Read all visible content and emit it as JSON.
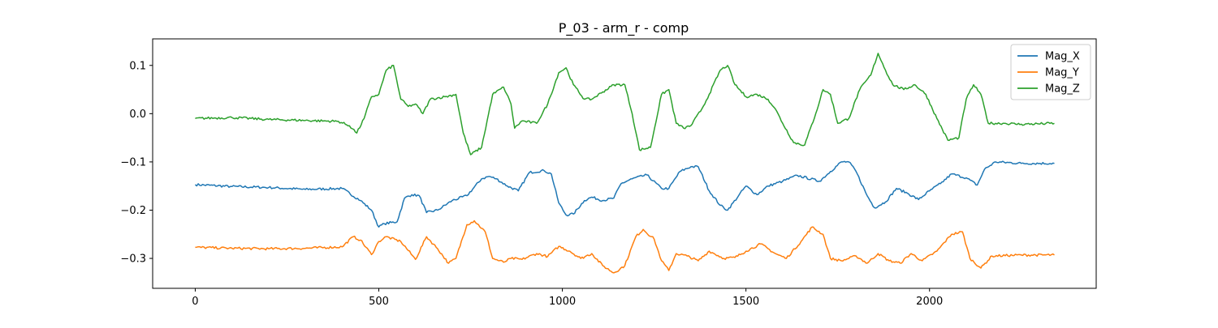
{
  "chart_data": {
    "type": "line",
    "title": "P_03 - arm_r - comp",
    "xlabel": "",
    "ylabel": "",
    "xlim": [
      -116,
      2454
    ],
    "ylim": [
      -0.362,
      0.155
    ],
    "grid": false,
    "legend_position": "top-right",
    "x_ticks": [
      0,
      500,
      1000,
      1500,
      2000
    ],
    "x_tick_labels": [
      "0",
      "500",
      "1000",
      "1500",
      "2000"
    ],
    "y_ticks": [
      0.1,
      0.0,
      -0.1,
      -0.2,
      -0.3
    ],
    "y_tick_labels": [
      "0.1",
      "0.0",
      "−0.1",
      "−0.2",
      "−0.3"
    ],
    "series": [
      {
        "name": "Mag_X",
        "color": "#1f77b4",
        "points": [
          [
            0,
            -0.147
          ],
          [
            100,
            -0.151
          ],
          [
            200,
            -0.153
          ],
          [
            300,
            -0.157
          ],
          [
            400,
            -0.155
          ],
          [
            450,
            -0.18
          ],
          [
            480,
            -0.2
          ],
          [
            500,
            -0.235
          ],
          [
            515,
            -0.228
          ],
          [
            550,
            -0.224
          ],
          [
            570,
            -0.175
          ],
          [
            590,
            -0.168
          ],
          [
            610,
            -0.17
          ],
          [
            630,
            -0.205
          ],
          [
            660,
            -0.2
          ],
          [
            700,
            -0.18
          ],
          [
            740,
            -0.17
          ],
          [
            780,
            -0.135
          ],
          [
            800,
            -0.13
          ],
          [
            820,
            -0.135
          ],
          [
            850,
            -0.15
          ],
          [
            880,
            -0.16
          ],
          [
            910,
            -0.122
          ],
          [
            950,
            -0.118
          ],
          [
            970,
            -0.125
          ],
          [
            990,
            -0.185
          ],
          [
            1010,
            -0.21
          ],
          [
            1030,
            -0.208
          ],
          [
            1060,
            -0.18
          ],
          [
            1080,
            -0.173
          ],
          [
            1110,
            -0.18
          ],
          [
            1140,
            -0.175
          ],
          [
            1160,
            -0.145
          ],
          [
            1190,
            -0.135
          ],
          [
            1230,
            -0.127
          ],
          [
            1270,
            -0.155
          ],
          [
            1290,
            -0.155
          ],
          [
            1320,
            -0.12
          ],
          [
            1350,
            -0.11
          ],
          [
            1370,
            -0.11
          ],
          [
            1400,
            -0.16
          ],
          [
            1430,
            -0.19
          ],
          [
            1450,
            -0.2
          ],
          [
            1480,
            -0.17
          ],
          [
            1500,
            -0.15
          ],
          [
            1530,
            -0.168
          ],
          [
            1560,
            -0.15
          ],
          [
            1600,
            -0.14
          ],
          [
            1640,
            -0.128
          ],
          [
            1700,
            -0.14
          ],
          [
            1730,
            -0.12
          ],
          [
            1760,
            -0.1
          ],
          [
            1780,
            -0.1
          ],
          [
            1800,
            -0.12
          ],
          [
            1830,
            -0.17
          ],
          [
            1850,
            -0.195
          ],
          [
            1880,
            -0.183
          ],
          [
            1910,
            -0.155
          ],
          [
            1940,
            -0.165
          ],
          [
            1970,
            -0.178
          ],
          [
            2000,
            -0.16
          ],
          [
            2030,
            -0.145
          ],
          [
            2060,
            -0.125
          ],
          [
            2100,
            -0.133
          ],
          [
            2130,
            -0.148
          ],
          [
            2150,
            -0.115
          ],
          [
            2180,
            -0.1
          ],
          [
            2250,
            -0.103
          ],
          [
            2340,
            -0.103
          ]
        ]
      },
      {
        "name": "Mag_Y",
        "color": "#ff7f0e",
        "points": [
          [
            0,
            -0.277
          ],
          [
            100,
            -0.279
          ],
          [
            200,
            -0.28
          ],
          [
            300,
            -0.279
          ],
          [
            400,
            -0.276
          ],
          [
            430,
            -0.255
          ],
          [
            450,
            -0.262
          ],
          [
            480,
            -0.292
          ],
          [
            500,
            -0.265
          ],
          [
            520,
            -0.255
          ],
          [
            560,
            -0.265
          ],
          [
            600,
            -0.302
          ],
          [
            630,
            -0.255
          ],
          [
            660,
            -0.28
          ],
          [
            690,
            -0.31
          ],
          [
            710,
            -0.3
          ],
          [
            740,
            -0.23
          ],
          [
            760,
            -0.222
          ],
          [
            790,
            -0.245
          ],
          [
            810,
            -0.3
          ],
          [
            840,
            -0.308
          ],
          [
            860,
            -0.3
          ],
          [
            890,
            -0.302
          ],
          [
            930,
            -0.29
          ],
          [
            960,
            -0.296
          ],
          [
            990,
            -0.275
          ],
          [
            1020,
            -0.285
          ],
          [
            1050,
            -0.3
          ],
          [
            1080,
            -0.29
          ],
          [
            1110,
            -0.315
          ],
          [
            1140,
            -0.33
          ],
          [
            1170,
            -0.315
          ],
          [
            1200,
            -0.255
          ],
          [
            1220,
            -0.24
          ],
          [
            1250,
            -0.26
          ],
          [
            1270,
            -0.305
          ],
          [
            1290,
            -0.325
          ],
          [
            1310,
            -0.29
          ],
          [
            1340,
            -0.295
          ],
          [
            1370,
            -0.305
          ],
          [
            1400,
            -0.285
          ],
          [
            1440,
            -0.3
          ],
          [
            1470,
            -0.298
          ],
          [
            1500,
            -0.285
          ],
          [
            1540,
            -0.27
          ],
          [
            1580,
            -0.29
          ],
          [
            1610,
            -0.3
          ],
          [
            1650,
            -0.265
          ],
          [
            1680,
            -0.235
          ],
          [
            1710,
            -0.25
          ],
          [
            1730,
            -0.3
          ],
          [
            1760,
            -0.305
          ],
          [
            1800,
            -0.295
          ],
          [
            1830,
            -0.31
          ],
          [
            1860,
            -0.29
          ],
          [
            1890,
            -0.305
          ],
          [
            1920,
            -0.31
          ],
          [
            1950,
            -0.29
          ],
          [
            1980,
            -0.305
          ],
          [
            2020,
            -0.285
          ],
          [
            2060,
            -0.25
          ],
          [
            2090,
            -0.245
          ],
          [
            2110,
            -0.3
          ],
          [
            2140,
            -0.32
          ],
          [
            2170,
            -0.295
          ],
          [
            2250,
            -0.293
          ],
          [
            2340,
            -0.293
          ]
        ]
      },
      {
        "name": "Mag_Z",
        "color": "#2ca02c",
        "points": [
          [
            0,
            -0.01
          ],
          [
            100,
            -0.008
          ],
          [
            200,
            -0.012
          ],
          [
            300,
            -0.014
          ],
          [
            390,
            -0.016
          ],
          [
            420,
            -0.025
          ],
          [
            440,
            -0.04
          ],
          [
            460,
            -0.01
          ],
          [
            480,
            0.035
          ],
          [
            500,
            0.04
          ],
          [
            520,
            0.09
          ],
          [
            540,
            0.1
          ],
          [
            560,
            0.03
          ],
          [
            580,
            0.015
          ],
          [
            600,
            0.02
          ],
          [
            620,
            0.0
          ],
          [
            640,
            0.03
          ],
          [
            680,
            0.035
          ],
          [
            710,
            0.04
          ],
          [
            730,
            -0.04
          ],
          [
            750,
            -0.085
          ],
          [
            780,
            -0.07
          ],
          [
            810,
            0.04
          ],
          [
            840,
            0.055
          ],
          [
            860,
            0.02
          ],
          [
            870,
            -0.03
          ],
          [
            890,
            -0.015
          ],
          [
            930,
            -0.02
          ],
          [
            960,
            0.02
          ],
          [
            990,
            0.085
          ],
          [
            1010,
            0.095
          ],
          [
            1030,
            0.06
          ],
          [
            1060,
            0.03
          ],
          [
            1080,
            0.03
          ],
          [
            1110,
            0.045
          ],
          [
            1140,
            0.06
          ],
          [
            1170,
            0.06
          ],
          [
            1190,
            0.0
          ],
          [
            1210,
            -0.075
          ],
          [
            1240,
            -0.07
          ],
          [
            1270,
            0.04
          ],
          [
            1290,
            0.05
          ],
          [
            1310,
            -0.02
          ],
          [
            1330,
            -0.03
          ],
          [
            1350,
            -0.025
          ],
          [
            1380,
            0.01
          ],
          [
            1400,
            0.04
          ],
          [
            1430,
            0.09
          ],
          [
            1450,
            0.1
          ],
          [
            1470,
            0.06
          ],
          [
            1500,
            0.035
          ],
          [
            1530,
            0.04
          ],
          [
            1560,
            0.03
          ],
          [
            1580,
            0.01
          ],
          [
            1600,
            -0.02
          ],
          [
            1630,
            -0.06
          ],
          [
            1660,
            -0.065
          ],
          [
            1690,
            0.0
          ],
          [
            1710,
            0.05
          ],
          [
            1730,
            0.04
          ],
          [
            1750,
            -0.02
          ],
          [
            1780,
            -0.01
          ],
          [
            1810,
            0.05
          ],
          [
            1840,
            0.08
          ],
          [
            1860,
            0.125
          ],
          [
            1880,
            0.09
          ],
          [
            1900,
            0.06
          ],
          [
            1930,
            0.05
          ],
          [
            1960,
            0.06
          ],
          [
            1990,
            0.04
          ],
          [
            2020,
            -0.01
          ],
          [
            2050,
            -0.055
          ],
          [
            2080,
            -0.05
          ],
          [
            2100,
            0.03
          ],
          [
            2120,
            0.06
          ],
          [
            2140,
            0.04
          ],
          [
            2160,
            -0.02
          ],
          [
            2200,
            -0.02
          ],
          [
            2250,
            -0.022
          ],
          [
            2340,
            -0.02
          ]
        ]
      }
    ]
  }
}
